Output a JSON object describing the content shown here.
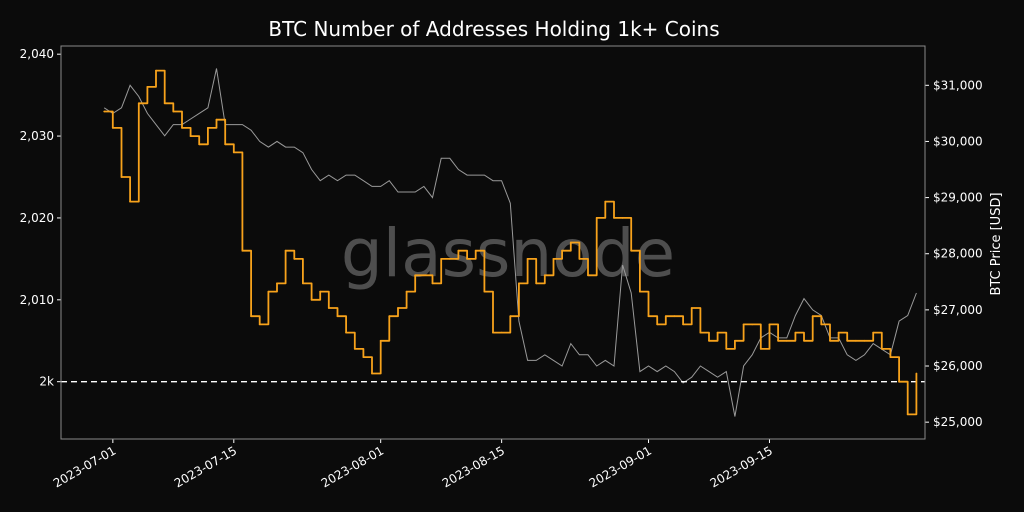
{
  "chart_data": {
    "type": "line",
    "title": "BTC Number of Addresses Holding 1k+ Coins",
    "watermark": "glassnode",
    "y_left": {
      "ticks": [
        2000,
        2010,
        2020,
        2030,
        2040
      ],
      "tick_labels": [
        "2k",
        "2,010",
        "2,020",
        "2,030",
        "2,040"
      ],
      "ylim": [
        1993,
        2041
      ]
    },
    "y_right": {
      "label": "BTC Price [USD]",
      "ticks": [
        25000,
        26000,
        27000,
        28000,
        29000,
        30000,
        31000
      ],
      "tick_labels": [
        "$25,000",
        "$26,000",
        "$27,000",
        "$28,000",
        "$29,000",
        "$30,000",
        "$31,000"
      ],
      "ylim": [
        24700,
        31700
      ]
    },
    "x_ticks": [
      "2023-07-01",
      "2023-07-15",
      "2023-08-01",
      "2023-08-15",
      "2023-09-01",
      "2023-09-15"
    ],
    "x_range": [
      "2023-06-25",
      "2023-10-03"
    ],
    "reference_line": {
      "value": 2000,
      "style": "dashed",
      "color": "#ffffff"
    },
    "grid": false,
    "colors": {
      "addresses": "#f7a21b",
      "price": "#9a9a9a",
      "background": "#0b0b0b",
      "frame": "#8a8a8a"
    },
    "series": [
      {
        "axis": "left",
        "x": [
          "2023-06-30",
          "2023-07-01",
          "2023-07-02",
          "2023-07-03",
          "2023-07-04",
          "2023-07-05",
          "2023-07-06",
          "2023-07-07",
          "2023-07-08",
          "2023-07-09",
          "2023-07-10",
          "2023-07-11",
          "2023-07-12",
          "2023-07-13",
          "2023-07-14",
          "2023-07-15",
          "2023-07-16",
          "2023-07-17",
          "2023-07-18",
          "2023-07-19",
          "2023-07-20",
          "2023-07-21",
          "2023-07-22",
          "2023-07-23",
          "2023-07-24",
          "2023-07-25",
          "2023-07-26",
          "2023-07-27",
          "2023-07-28",
          "2023-07-29",
          "2023-07-30",
          "2023-07-31",
          "2023-08-01",
          "2023-08-02",
          "2023-08-03",
          "2023-08-04",
          "2023-08-05",
          "2023-08-06",
          "2023-08-07",
          "2023-08-08",
          "2023-08-09",
          "2023-08-10",
          "2023-08-11",
          "2023-08-12",
          "2023-08-13",
          "2023-08-14",
          "2023-08-15",
          "2023-08-16",
          "2023-08-17",
          "2023-08-18",
          "2023-08-19",
          "2023-08-20",
          "2023-08-21",
          "2023-08-22",
          "2023-08-23",
          "2023-08-24",
          "2023-08-25",
          "2023-08-26",
          "2023-08-27",
          "2023-08-28",
          "2023-08-29",
          "2023-08-30",
          "2023-08-31",
          "2023-09-01",
          "2023-09-02",
          "2023-09-03",
          "2023-09-04",
          "2023-09-05",
          "2023-09-06",
          "2023-09-07",
          "2023-09-08",
          "2023-09-09",
          "2023-09-10",
          "2023-09-11",
          "2023-09-12",
          "2023-09-13",
          "2023-09-14",
          "2023-09-15",
          "2023-09-16",
          "2023-09-17",
          "2023-09-18",
          "2023-09-19",
          "2023-09-20",
          "2023-09-21",
          "2023-09-22",
          "2023-09-23",
          "2023-09-24",
          "2023-09-25",
          "2023-09-26",
          "2023-09-27",
          "2023-09-28",
          "2023-09-29",
          "2023-09-30",
          "2023-10-01",
          "2023-10-02"
        ],
        "values": [
          2033,
          2031,
          2025,
          2022,
          2034,
          2036,
          2038,
          2034,
          2033,
          2031,
          2030,
          2029,
          2031,
          2032,
          2029,
          2028,
          2016,
          2008,
          2007,
          2011,
          2012,
          2016,
          2015,
          2012,
          2010,
          2011,
          2009,
          2008,
          2006,
          2004,
          2003,
          2001,
          2005,
          2008,
          2009,
          2011,
          2013,
          2013,
          2012,
          2015,
          2015,
          2016,
          2015,
          2016,
          2011,
          2006,
          2006,
          2008,
          2012,
          2015,
          2012,
          2013,
          2015,
          2016,
          2017,
          2015,
          2013,
          2020,
          2022,
          2020,
          2020,
          2016,
          2011,
          2008,
          2007,
          2008,
          2008,
          2007,
          2009,
          2006,
          2005,
          2006,
          2004,
          2005,
          2007,
          2007,
          2004,
          2007,
          2005,
          2005,
          2006,
          2005,
          2008,
          2007,
          2005,
          2006,
          2005,
          2005,
          2005,
          2006,
          2004,
          2003,
          2000,
          1996,
          2001
        ]
      },
      {
        "axis": "right",
        "x": [
          "2023-06-30",
          "2023-07-01",
          "2023-07-02",
          "2023-07-03",
          "2023-07-04",
          "2023-07-05",
          "2023-07-06",
          "2023-07-07",
          "2023-07-08",
          "2023-07-09",
          "2023-07-10",
          "2023-07-11",
          "2023-07-12",
          "2023-07-13",
          "2023-07-14",
          "2023-07-15",
          "2023-07-16",
          "2023-07-17",
          "2023-07-18",
          "2023-07-19",
          "2023-07-20",
          "2023-07-21",
          "2023-07-22",
          "2023-07-23",
          "2023-07-24",
          "2023-07-25",
          "2023-07-26",
          "2023-07-27",
          "2023-07-28",
          "2023-07-29",
          "2023-07-30",
          "2023-07-31",
          "2023-08-01",
          "2023-08-02",
          "2023-08-03",
          "2023-08-04",
          "2023-08-05",
          "2023-08-06",
          "2023-08-07",
          "2023-08-08",
          "2023-08-09",
          "2023-08-10",
          "2023-08-11",
          "2023-08-12",
          "2023-08-13",
          "2023-08-14",
          "2023-08-15",
          "2023-08-16",
          "2023-08-17",
          "2023-08-18",
          "2023-08-19",
          "2023-08-20",
          "2023-08-21",
          "2023-08-22",
          "2023-08-23",
          "2023-08-24",
          "2023-08-25",
          "2023-08-26",
          "2023-08-27",
          "2023-08-28",
          "2023-08-29",
          "2023-08-30",
          "2023-08-31",
          "2023-09-01",
          "2023-09-02",
          "2023-09-03",
          "2023-09-04",
          "2023-09-05",
          "2023-09-06",
          "2023-09-07",
          "2023-09-08",
          "2023-09-09",
          "2023-09-10",
          "2023-09-11",
          "2023-09-12",
          "2023-09-13",
          "2023-09-14",
          "2023-09-15",
          "2023-09-16",
          "2023-09-17",
          "2023-09-18",
          "2023-09-19",
          "2023-09-20",
          "2023-09-21",
          "2023-09-22",
          "2023-09-23",
          "2023-09-24",
          "2023-09-25",
          "2023-09-26",
          "2023-09-27",
          "2023-09-28",
          "2023-09-29",
          "2023-09-30",
          "2023-10-01",
          "2023-10-02"
        ],
        "values": [
          30600,
          30500,
          30600,
          31000,
          30800,
          30500,
          30300,
          30100,
          30300,
          30300,
          30400,
          30500,
          30600,
          31300,
          30300,
          30300,
          30300,
          30200,
          30000,
          29900,
          30000,
          29900,
          29900,
          29800,
          29500,
          29300,
          29400,
          29300,
          29400,
          29400,
          29300,
          29200,
          29200,
          29300,
          29100,
          29100,
          29100,
          29200,
          29000,
          29700,
          29700,
          29500,
          29400,
          29400,
          29400,
          29300,
          29300,
          28900,
          26800,
          26100,
          26100,
          26200,
          26100,
          26000,
          26400,
          26200,
          26200,
          26000,
          26100,
          26000,
          27800,
          27300,
          25900,
          26000,
          25900,
          26000,
          25900,
          25700,
          25800,
          26000,
          25900,
          25800,
          25900,
          25100,
          26000,
          26200,
          26500,
          26600,
          26500,
          26500,
          26900,
          27200,
          27000,
          26900,
          26500,
          26500,
          26200,
          26100,
          26200,
          26400,
          26300,
          26200,
          26800,
          26900,
          27300
        ]
      }
    ]
  }
}
